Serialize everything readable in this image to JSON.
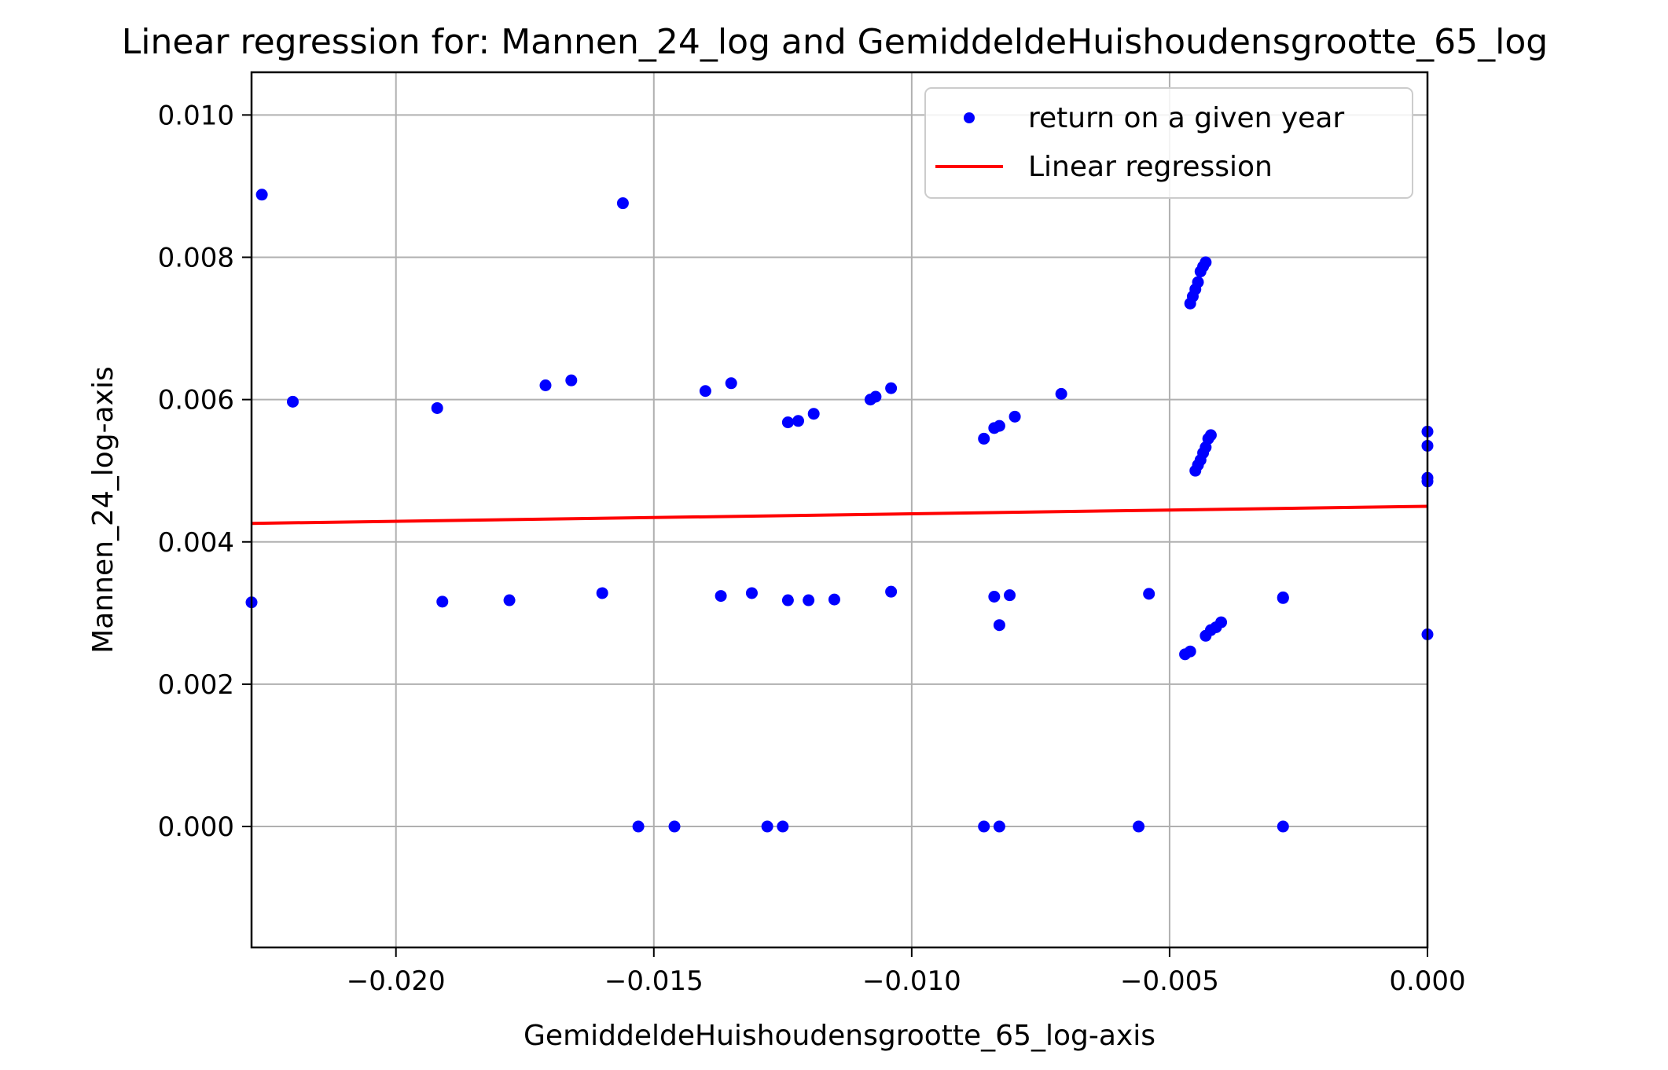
{
  "chart_data": {
    "type": "scatter",
    "title": "Linear regression for: Mannen_24_log and GemiddeldeHuishoudensgrootte_65_log",
    "xlabel": "GemiddeldeHuishoudensgrootte_65_log-axis",
    "ylabel": "Mannen_24_log-axis",
    "xlim": [
      -0.0228,
      0.0
    ],
    "ylim": [
      -0.0017,
      0.0106
    ],
    "grid": true,
    "legend_position": "top-right",
    "x_ticks": [
      -0.02,
      -0.015,
      -0.01,
      -0.005,
      0.0
    ],
    "x_tick_labels": [
      "−0.020",
      "−0.015",
      "−0.010",
      "−0.005",
      "0.000"
    ],
    "y_ticks": [
      0.0,
      0.002,
      0.004,
      0.006,
      0.008,
      0.01
    ],
    "y_tick_labels": [
      "0.000",
      "0.002",
      "0.004",
      "0.006",
      "0.008",
      "0.010"
    ],
    "series": [
      {
        "name": "return on a given year",
        "kind": "scatter",
        "color": "#0000ff",
        "points": [
          [
            -0.0226,
            0.00888
          ],
          [
            -0.0156,
            0.00876
          ],
          [
            -0.022,
            0.00597
          ],
          [
            -0.0192,
            0.00588
          ],
          [
            -0.0171,
            0.0062
          ],
          [
            -0.0166,
            0.00627
          ],
          [
            -0.014,
            0.00612
          ],
          [
            -0.0135,
            0.00623
          ],
          [
            -0.0124,
            0.00568
          ],
          [
            -0.0122,
            0.0057
          ],
          [
            -0.0119,
            0.0058
          ],
          [
            -0.0108,
            0.006
          ],
          [
            -0.0107,
            0.00604
          ],
          [
            -0.0104,
            0.00616
          ],
          [
            -0.0086,
            0.00545
          ],
          [
            -0.0084,
            0.0056
          ],
          [
            -0.0083,
            0.00563
          ],
          [
            -0.008,
            0.00576
          ],
          [
            -0.0071,
            0.00608
          ],
          [
            -0.0046,
            0.00735
          ],
          [
            -0.00455,
            0.00745
          ],
          [
            -0.0045,
            0.00755
          ],
          [
            -0.00445,
            0.00765
          ],
          [
            -0.0044,
            0.0078
          ],
          [
            -0.00435,
            0.00787
          ],
          [
            -0.0043,
            0.00793
          ],
          [
            -0.0045,
            0.005
          ],
          [
            -0.00445,
            0.00508
          ],
          [
            -0.0044,
            0.00515
          ],
          [
            -0.00435,
            0.00525
          ],
          [
            -0.0043,
            0.00533
          ],
          [
            -0.00425,
            0.00545
          ],
          [
            -0.0042,
            0.0055
          ],
          [
            0.0,
            0.00555
          ],
          [
            0.0,
            0.00535
          ],
          [
            0.0,
            0.0049
          ],
          [
            0.0,
            0.00485
          ],
          [
            -0.0228,
            0.00315
          ],
          [
            -0.0191,
            0.00316
          ],
          [
            -0.0178,
            0.00318
          ],
          [
            -0.016,
            0.00328
          ],
          [
            -0.0137,
            0.00324
          ],
          [
            -0.0131,
            0.00328
          ],
          [
            -0.0124,
            0.00318
          ],
          [
            -0.012,
            0.00318
          ],
          [
            -0.0115,
            0.00319
          ],
          [
            -0.0104,
            0.0033
          ],
          [
            -0.0084,
            0.00323
          ],
          [
            -0.0081,
            0.00325
          ],
          [
            -0.0083,
            0.00283
          ],
          [
            -0.0054,
            0.00327
          ],
          [
            -0.0028,
            0.00321
          ],
          [
            -0.0028,
            0.00322
          ],
          [
            -0.0047,
            0.00242
          ],
          [
            -0.0046,
            0.00246
          ],
          [
            -0.0043,
            0.00268
          ],
          [
            -0.0042,
            0.00276
          ],
          [
            -0.0041,
            0.0028
          ],
          [
            -0.004,
            0.00287
          ],
          [
            0.0,
            0.0027
          ],
          [
            -0.0153,
            0.0
          ],
          [
            -0.0146,
            0.0
          ],
          [
            -0.0128,
            0.0
          ],
          [
            -0.0125,
            0.0
          ],
          [
            -0.0086,
            0.0
          ],
          [
            -0.0083,
            0.0
          ],
          [
            -0.0056,
            0.0
          ],
          [
            -0.0028,
            0.0
          ]
        ]
      },
      {
        "name": "Linear regression",
        "kind": "line",
        "color": "#ff0000",
        "points": [
          [
            -0.0228,
            0.00426
          ],
          [
            0.0,
            0.0045
          ]
        ]
      }
    ]
  }
}
